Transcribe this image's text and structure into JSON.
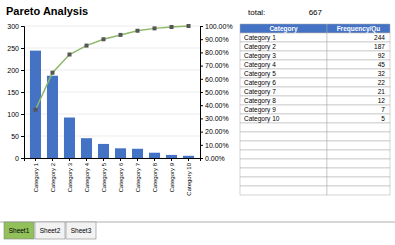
{
  "chart_data": {
    "type": "bar",
    "title": "Pareto Analysis",
    "categories": [
      "Category 1",
      "Category 2",
      "Category 3",
      "Category 4",
      "Category 5",
      "Category 6",
      "Category 7",
      "Category 8",
      "Category 9",
      "Category 10"
    ],
    "series": [
      {
        "type": "bar",
        "color": "#4472C4",
        "values": [
          244,
          187,
          92,
          45,
          32,
          22,
          21,
          12,
          7,
          5
        ]
      },
      {
        "type": "line",
        "axis": "y2",
        "color": "#8DB86A",
        "marker": "square",
        "values": [
          36.58170914542729,
          64.6176911544228,
          78.41079460269867,
          85.15742128935534,
          89.95502248875562,
          93.25337331334333,
          96.40179910044978,
          98.2008995502249,
          99.25037481259372,
          100
        ]
      }
    ],
    "ylim": [
      0,
      300
    ],
    "yticks": [
      0,
      50,
      100,
      150,
      200,
      250,
      300
    ],
    "y2lim": [
      0,
      100
    ],
    "y2ticks": [
      {
        "value": 0,
        "label": "0.00%"
      },
      {
        "value": 10,
        "label": "10.00%"
      },
      {
        "value": 20,
        "label": "20.00%"
      },
      {
        "value": 30,
        "label": "30.00%"
      },
      {
        "value": 40,
        "label": "40.00%"
      },
      {
        "value": 50,
        "label": "50.00%"
      },
      {
        "value": 60,
        "label": "60.00%"
      },
      {
        "value": 70,
        "label": "70.00%"
      },
      {
        "value": 80,
        "label": "80.00%"
      },
      {
        "value": 90,
        "label": "90.00%"
      },
      {
        "value": 100,
        "label": "100.00%"
      }
    ],
    "grid": true,
    "total": 667,
    "annotations": [
      "total:",
      "Category",
      "Frequency/Qu",
      "Sheet1",
      "Sheet2",
      "Sheet3"
    ]
  }
}
